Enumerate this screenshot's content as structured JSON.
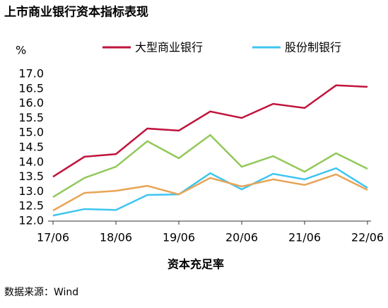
{
  "chart_data": {
    "type": "line",
    "title": "上市商业银行资本指标表现",
    "y_unit": "%",
    "x_label": "资本充足率",
    "source": "数据来源：Wind",
    "categories": [
      "17/06",
      null,
      "18/06",
      null,
      "19/06",
      null,
      "20/06",
      null,
      "21/06",
      null,
      "22/06"
    ],
    "series": [
      {
        "name": "大型商业银行",
        "color": "#c0143c",
        "values": [
          13.51,
          14.19,
          14.28,
          15.15,
          15.08,
          15.73,
          15.51,
          15.99,
          15.85,
          16.62,
          16.57
        ]
      },
      {
        "color": "#92c85a",
        "values": [
          12.82,
          13.47,
          13.85,
          14.72,
          14.14,
          14.93,
          13.85,
          14.21,
          13.68,
          14.31,
          13.78
        ]
      },
      {
        "name": "股份制银行",
        "color": "#3ec5f0",
        "values": [
          12.19,
          12.41,
          12.38,
          12.89,
          12.91,
          13.63,
          13.08,
          13.61,
          13.42,
          13.8,
          13.13
        ]
      },
      {
        "color": "#e8a456",
        "values": [
          12.36,
          12.96,
          13.03,
          13.2,
          12.91,
          13.47,
          13.18,
          13.42,
          13.23,
          13.59,
          13.06
        ]
      }
    ],
    "ylim": [
      12,
      17
    ],
    "yticks": [
      {
        "value": 12,
        "label": "12.0"
      },
      12.5,
      {
        "value": 13,
        "label": "13.0"
      },
      13.5,
      {
        "value": 14,
        "label": "14.0"
      },
      14.5,
      {
        "value": 15,
        "label": "15.0"
      },
      15.5,
      {
        "value": 16,
        "label": "16.0"
      },
      16.5,
      {
        "value": 17,
        "label": "17.0"
      }
    ]
  }
}
